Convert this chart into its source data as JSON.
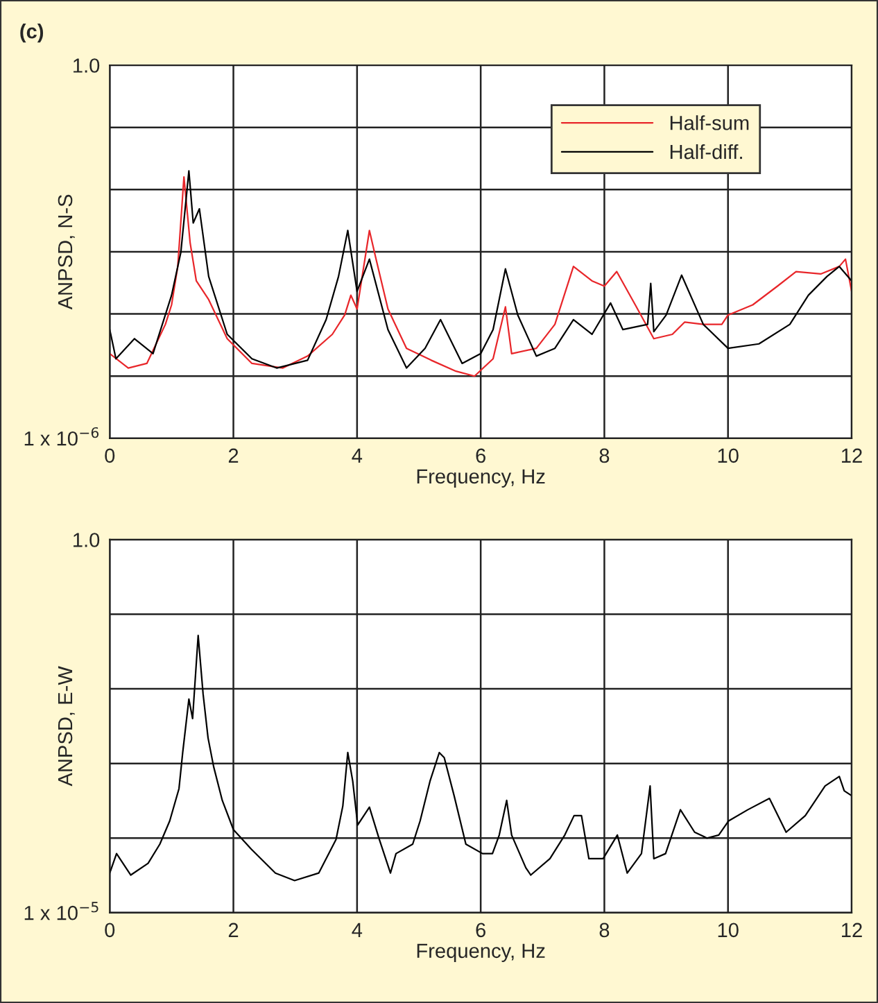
{
  "chart_data": [
    {
      "type": "line",
      "title": "(c)",
      "xlabel": "Frequency, Hz",
      "ylabel": "ANPSD, N-S",
      "log": "y",
      "grid": true,
      "legend": "top right",
      "xlim": [
        0,
        12
      ],
      "xticks": [
        0,
        2,
        4,
        6,
        8,
        10,
        12
      ],
      "ylim": [
        1e-06,
        1.0
      ],
      "yticks": [
        {
          "value": 1e-06,
          "label": "1 x 10$^{−6}$"
        },
        {
          "value": 1e-05,
          "label": null
        },
        {
          "value": 0.0001,
          "label": null
        },
        {
          "value": 0.001,
          "label": null
        },
        {
          "value": 0.01,
          "label": null
        },
        {
          "value": 0.1,
          "label": null
        },
        {
          "value": 1.0,
          "label": "1.0"
        }
      ],
      "series": [
        {
          "name": "Half-sum",
          "color": "#e8262a",
          "x": [
            0,
            0.3,
            0.6,
            0.9,
            1.0,
            1.1,
            1.2,
            1.3,
            1.4,
            1.6,
            1.9,
            2.3,
            2.8,
            3.2,
            3.6,
            3.8,
            3.9,
            4.0,
            4.2,
            4.3,
            4.5,
            4.8,
            5.2,
            5.6,
            5.9,
            6.2,
            6.4,
            6.5,
            6.9,
            7.2,
            7.5,
            7.8,
            8.0,
            8.2,
            8.5,
            8.8,
            9.1,
            9.3,
            9.6,
            9.9,
            10.0,
            10.4,
            10.8,
            11.1,
            11.5,
            11.8,
            11.9,
            12.0
          ],
          "values": [
            2.3e-05,
            1.35e-05,
            1.6e-05,
            6.8e-05,
            0.00014,
            0.00058,
            0.016,
            0.0014,
            0.00034,
            0.00017,
            4e-05,
            1.6e-05,
            1.35e-05,
            2.1e-05,
            4.7e-05,
            9.6e-05,
            0.0002,
            0.00012,
            0.0022,
            0.00082,
            0.00012,
            2.8e-05,
            1.8e-05,
            1.2e-05,
            1e-05,
            1.9e-05,
            0.00013,
            2.3e-05,
            2.8e-05,
            6.8e-05,
            0.00058,
            0.00034,
            0.00028,
            0.00048,
            0.00014,
            4e-05,
            4.7e-05,
            7.4e-05,
            6.8e-05,
            6.8e-05,
            9.6e-05,
            0.00014,
            0.00028,
            0.00048,
            0.00044,
            0.00058,
            0.00076,
            0.00023
          ]
        },
        {
          "name": "Half-diff.",
          "color": "#000000",
          "x": [
            0,
            0.1,
            0.4,
            0.7,
            1.0,
            1.15,
            1.28,
            1.35,
            1.45,
            1.6,
            1.9,
            2.3,
            2.7,
            3.2,
            3.5,
            3.7,
            3.85,
            4.0,
            4.2,
            4.5,
            4.8,
            5.1,
            5.35,
            5.7,
            6.0,
            6.2,
            6.4,
            6.6,
            6.9,
            7.2,
            7.5,
            7.8,
            8.1,
            8.3,
            8.7,
            8.75,
            8.8,
            9.0,
            9.25,
            9.6,
            10.0,
            10.5,
            11.0,
            11.3,
            11.6,
            11.8,
            12.0
          ],
          "values": [
            5.6e-05,
            1.9e-05,
            4e-05,
            2.3e-05,
            0.0002,
            0.00098,
            0.02,
            0.0029,
            0.0049,
            0.0004,
            4.7e-05,
            1.9e-05,
            1.35e-05,
            1.8e-05,
            8.1e-05,
            0.0004,
            0.0022,
            0.00023,
            0.00076,
            5.6e-05,
            1.35e-05,
            2.8e-05,
            8.1e-05,
            1.6e-05,
            2.3e-05,
            5.6e-05,
            0.00053,
            9.6e-05,
            2.1e-05,
            2.8e-05,
            8.1e-05,
            4.7e-05,
            0.00015,
            5.6e-05,
            6.8e-05,
            0.00031,
            5.2e-05,
            9.6e-05,
            0.00042,
            6.8e-05,
            2.8e-05,
            3.3e-05,
            6.8e-05,
            0.0002,
            0.0004,
            0.00058,
            0.00034
          ]
        }
      ]
    },
    {
      "type": "line",
      "xlabel": "Frequency, Hz",
      "ylabel": "ANPSD, E-W",
      "log": "y",
      "grid": true,
      "xlim": [
        0,
        12
      ],
      "xticks": [
        0,
        2,
        4,
        6,
        8,
        10,
        12
      ],
      "ylim": [
        1e-05,
        1.0
      ],
      "yticks": [
        {
          "value": 1e-05,
          "label": "1 x 10$^{−5}$"
        },
        {
          "value": 0.0001,
          "label": null
        },
        {
          "value": 0.001,
          "label": null
        },
        {
          "value": 0.01,
          "label": null
        },
        {
          "value": 0.1,
          "label": null
        },
        {
          "value": 1.0,
          "label": "1.0"
        }
      ],
      "series": [
        {
          "color": "#000000",
          "x": [
            0,
            0.11,
            0.34,
            0.62,
            0.81,
            0.97,
            1.12,
            1.18,
            1.28,
            1.34,
            1.43,
            1.51,
            1.59,
            1.68,
            1.82,
            2.0,
            2.29,
            2.68,
            2.99,
            3.38,
            3.66,
            3.77,
            3.85,
            3.93,
            4.01,
            4.2,
            4.36,
            4.54,
            4.63,
            4.9,
            5.02,
            5.18,
            5.33,
            5.41,
            5.57,
            5.76,
            6.03,
            6.19,
            6.3,
            6.42,
            6.5,
            6.73,
            6.81,
            7.12,
            7.36,
            7.51,
            7.63,
            7.75,
            7.98,
            8.21,
            8.37,
            8.6,
            8.74,
            8.8,
            8.99,
            9.23,
            9.46,
            9.66,
            9.85,
            10.01,
            10.32,
            10.67,
            10.94,
            11.25,
            11.57,
            11.8,
            11.88,
            12.0
          ],
          "values": [
            3.4e-05,
            6.2e-05,
            3.2e-05,
            4.6e-05,
            8.3e-05,
            0.00017,
            0.00046,
            0.0014,
            0.0073,
            0.004,
            0.052,
            0.0085,
            0.0022,
            0.00091,
            0.00032,
            0.00013,
            7.1e-05,
            3.4e-05,
            2.7e-05,
            3.4e-05,
            9.6e-05,
            0.00027,
            0.0014,
            0.00058,
            0.00015,
            0.00026,
            9.6e-05,
            3.4e-05,
            6.2e-05,
            8.3e-05,
            0.00017,
            0.00058,
            0.0014,
            0.0012,
            0.00037,
            8.3e-05,
            6.2e-05,
            6.2e-05,
            0.00011,
            0.00032,
            0.00011,
            4e-05,
            3.2e-05,
            5.3e-05,
            0.00011,
            0.0002,
            0.0002,
            5.3e-05,
            5.3e-05,
            0.00011,
            3.4e-05,
            6.2e-05,
            0.0005,
            5.3e-05,
            6.2e-05,
            0.00024,
            0.00012,
            0.0001,
            0.00011,
            0.00017,
            0.00024,
            0.00034,
            0.00012,
            0.0002,
            0.0005,
            0.00067,
            0.00043,
            0.00037
          ]
        }
      ]
    }
  ]
}
